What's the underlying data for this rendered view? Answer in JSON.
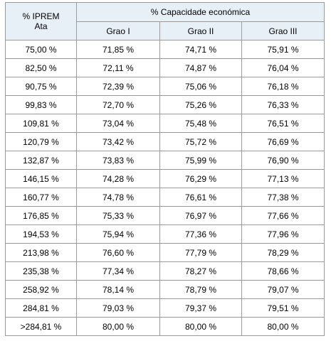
{
  "table": {
    "header": {
      "first_col_line1": "% IPREM",
      "first_col_line2": "Ata",
      "group": "% Capacidade económica",
      "grades": [
        "Grao I",
        "Grao II",
        "Grao III"
      ]
    },
    "rows": [
      [
        "75,00 %",
        "71,85 %",
        "74,71 %",
        "75,91 %"
      ],
      [
        "82,50 %",
        "72,11 %",
        "74,87 %",
        "76,04 %"
      ],
      [
        "90,75 %",
        "72,39 %",
        "75,06 %",
        "76,18 %"
      ],
      [
        "99,83 %",
        "72,70 %",
        "75,26 %",
        "76,33 %"
      ],
      [
        "109,81 %",
        "73,04 %",
        "75,48 %",
        "76,51 %"
      ],
      [
        "120,79 %",
        "73,42 %",
        "75,72 %",
        "76,69 %"
      ],
      [
        "132,87 %",
        "73,83 %",
        "75,99 %",
        "76,90 %"
      ],
      [
        "146,15 %",
        "74,28 %",
        "76,29 %",
        "77,13 %"
      ],
      [
        "160,77 %",
        "74,78 %",
        "76,61 %",
        "77,38 %"
      ],
      [
        "176,85 %",
        "75,33 %",
        "76,97 %",
        "77,66 %"
      ],
      [
        "194,53 %",
        "75,94 %",
        "77,36 %",
        "77,96 %"
      ],
      [
        "213,98 %",
        "76,60 %",
        "77,79 %",
        "78,29 %"
      ],
      [
        "235,38 %",
        "77,34 %",
        "78,27 %",
        "78,66 %"
      ],
      [
        "258,92 %",
        "78,14 %",
        "78,79 %",
        "79,07 %"
      ],
      [
        "284,81 %",
        "79,03 %",
        "79,37 %",
        "79,51 %"
      ],
      [
        ">284,81 %",
        "80,00 %",
        "80,00 %",
        "80,00 %"
      ]
    ]
  },
  "colors": {
    "header_background": "#e8f0f7",
    "border": "#9a9a9a"
  }
}
